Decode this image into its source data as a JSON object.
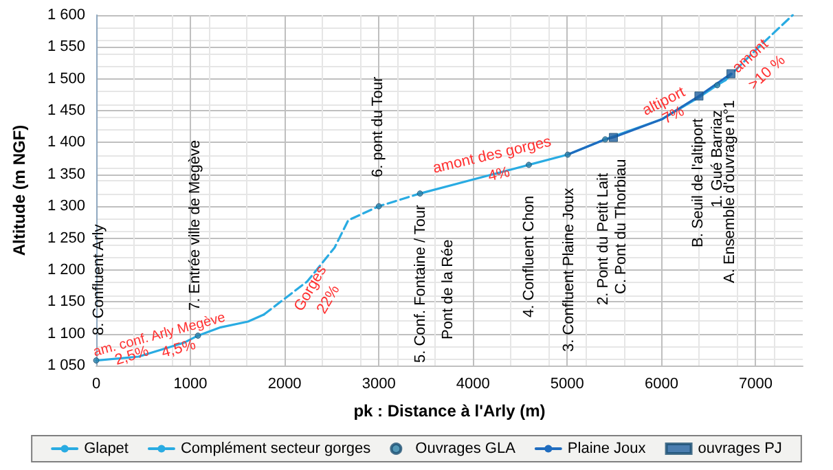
{
  "chart_data": {
    "type": "line",
    "xlabel": "pk : Distance à l'Arly (m)",
    "ylabel": "Altitude (m NGF)",
    "xlim": [
      0,
      7500
    ],
    "xticks": [
      0,
      1000,
      2000,
      3000,
      4000,
      5000,
      6000,
      7000
    ],
    "ylim": [
      1050,
      1600
    ],
    "yticks": [
      {
        "value": 1050,
        "label": "1 050"
      },
      {
        "value": 1100,
        "label": "1 100"
      },
      {
        "value": 1150,
        "label": "1 150"
      },
      {
        "value": 1200,
        "label": "1 200"
      },
      {
        "value": 1250,
        "label": "1 250"
      },
      {
        "value": 1300,
        "label": "1 300"
      },
      {
        "value": 1350,
        "label": "1 350"
      },
      {
        "value": 1400,
        "label": "1 400"
      },
      {
        "value": 1450,
        "label": "1 450"
      },
      {
        "value": 1500,
        "label": "1 500"
      },
      {
        "value": 1550,
        "label": "1 550"
      },
      {
        "value": 1600,
        "label": "1 600"
      }
    ],
    "grid": true,
    "legend": "bottom",
    "series": [
      {
        "name": "Glapet",
        "type": "line",
        "line_style": "solid",
        "color": "#29abe2",
        "x": [
          0,
          450,
          934,
          1080,
          1321,
          1611,
          1780,
          2600,
          3437,
          4000,
          4592,
          5005,
          5403,
          6010,
          6398,
          6592,
          6680
        ],
        "values": [
          1058,
          1064,
          1086,
          1097,
          1110,
          1119,
          1130,
          null,
          1320,
          1342,
          1365,
          1381,
          1405,
          1437,
          1471,
          1490,
          1498
        ]
      },
      {
        "name": "Complément secteur gorges",
        "type": "line",
        "line_style": "dashed",
        "color": "#29abe2",
        "x": [
          1780,
          2000,
          2240,
          2530,
          2675,
          3000,
          3437,
          5000,
          6680,
          7005,
          7393
        ],
        "values": [
          1130,
          1155,
          1182,
          1235,
          1278,
          1300,
          1320,
          null,
          1498,
          1546,
          1600
        ]
      },
      {
        "name": "Ouvrages GLA",
        "type": "scatter",
        "marker": "circle",
        "color": "#2a7fa8",
        "x": [
          0,
          1080,
          3000,
          3437,
          4592,
          5005,
          5403,
          6592
        ],
        "values": [
          1058,
          1097,
          1300,
          1320,
          1365,
          1381,
          1405,
          1490
        ]
      },
      {
        "name": "Plaine Joux",
        "type": "line",
        "line_style": "solid",
        "color": "#1f6cbf",
        "x": [
          5005,
          5403,
          5490,
          6010,
          6398,
          6738
        ],
        "values": [
          1381,
          1405,
          1408,
          1437,
          1473,
          1508
        ]
      },
      {
        "name": "ouvrages PJ",
        "type": "scatter",
        "marker": "square",
        "color": "#1f5f9f",
        "x": [
          5490,
          6398,
          6738
        ],
        "values": [
          1408,
          1473,
          1508
        ]
      }
    ],
    "annotations": [
      "8. Confluent Arly",
      "7. Entrée ville de Megève",
      "6. pont du Tour",
      "5. Conf. Fontaine / Tour",
      "Pont de la Rée",
      "4. Confluent Chon",
      "3. Confluent Plaine Joux",
      "2. Pont du Petit Lait",
      "C. Pont du Thorbiau",
      "B. Seuil de l'altiport",
      "1. Gué Barriaz",
      "A. Ensemble d'ouvrage n°1",
      "am. conf. Arly Megève",
      "2,5%",
      "4,5%",
      "Gorges",
      "22%",
      "amont des gorges",
      "4%",
      "altiport",
      "7%",
      "amont",
      ">10 %"
    ]
  }
}
